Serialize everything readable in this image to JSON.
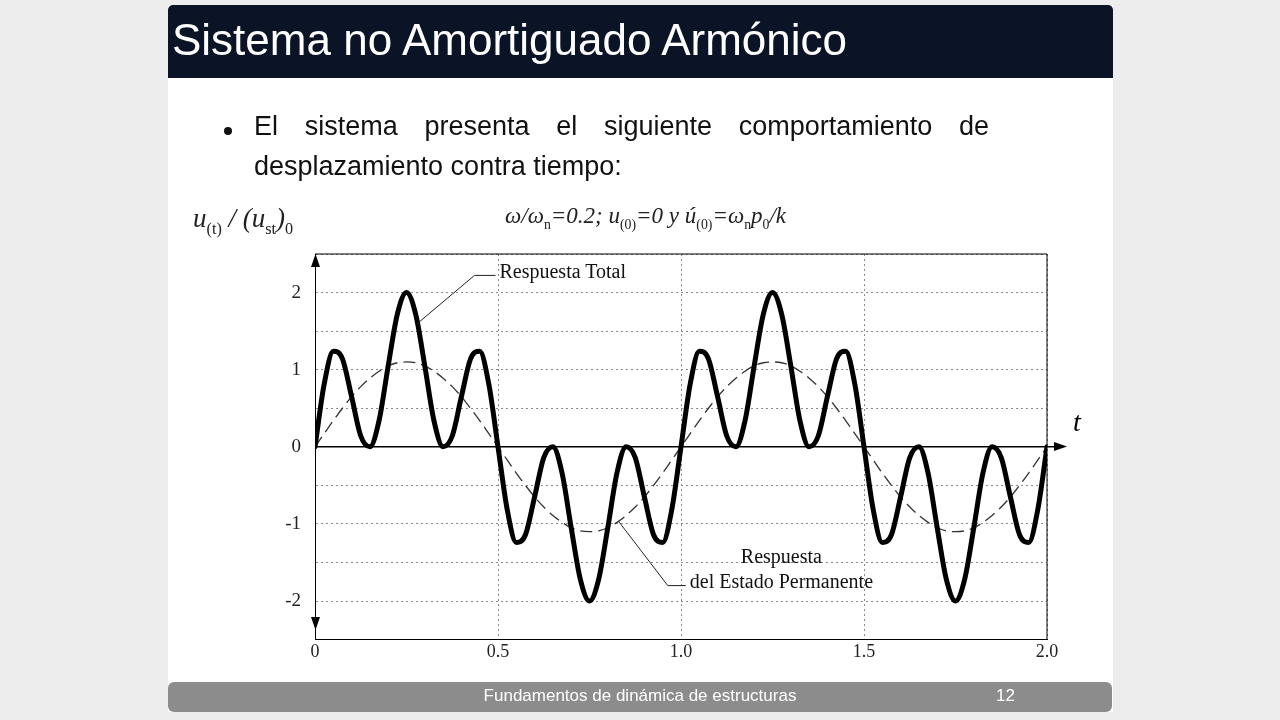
{
  "chart_data": {
    "type": "line",
    "title": "Sistema no Amortiguado Armónico",
    "subtitle": "El sistema presenta el siguiente comportamiento de desplazamiento contra tiempo:",
    "xlabel": "t",
    "ylabel": "u$_{(t)}$ / (u$_{st}$)$_{0}$",
    "x": [
      0,
      0.025,
      0.05,
      0.075,
      0.1,
      0.125,
      0.15,
      0.175,
      0.2,
      0.225,
      0.25,
      0.275,
      0.3,
      0.325,
      0.35,
      0.375,
      0.4,
      0.425,
      0.45,
      0.475,
      0.5,
      0.525,
      0.55,
      0.575,
      0.6,
      0.625,
      0.65,
      0.675,
      0.7,
      0.725,
      0.75,
      0.775,
      0.8,
      0.825,
      0.85,
      0.875,
      0.9,
      0.925,
      0.95,
      0.975,
      1,
      1.025,
      1.05,
      1.075,
      1.1,
      1.125,
      1.15,
      1.175,
      1.2,
      1.225,
      1.25,
      1.275,
      1.3,
      1.325,
      1.35,
      1.375,
      1.4,
      1.425,
      1.45,
      1.475,
      1.5,
      1.525,
      1.55,
      1.575,
      1.6,
      1.625,
      1.65,
      1.675,
      1.7,
      1.725,
      1.75,
      1.775,
      1.8,
      1.825,
      1.85,
      1.875,
      1.9,
      1.925,
      1.95,
      1.975,
      2
    ],
    "series": [
      {
        "color": "#000000",
        "values": [
          0,
          0.81,
          1.24,
          1.14,
          0.65,
          0.14,
          0,
          0.34,
          1.05,
          1.72,
          2,
          1.72,
          1.05,
          0.34,
          0,
          0.14,
          0.65,
          1.14,
          1.24,
          0.81,
          0,
          -0.81,
          -1.24,
          -1.14,
          -0.65,
          -0.14,
          0,
          -0.34,
          -1.05,
          -1.72,
          -2,
          -1.72,
          -1.05,
          -0.34,
          0,
          -0.14,
          -0.65,
          -1.14,
          -1.24,
          -0.81,
          0,
          0.81,
          1.24,
          1.14,
          0.65,
          0.14,
          0,
          0.34,
          1.05,
          1.72,
          2,
          1.72,
          1.05,
          0.34,
          0,
          0.14,
          0.65,
          1.14,
          1.24,
          0.81,
          0,
          -0.81,
          -1.24,
          -1.14,
          -0.65,
          -0.14,
          0,
          -0.34,
          -1.05,
          -1.72,
          -2,
          -1.72,
          -1.05,
          -0.34,
          0,
          -0.14,
          -0.65,
          -1.14,
          -1.24,
          -0.81,
          0
        ]
      },
      {
        "color": "#333333",
        "line_style": "dashed",
        "values": [
          0,
          0.17,
          0.34,
          0.5,
          0.65,
          0.78,
          0.89,
          0.98,
          1.05,
          1.09,
          1.1,
          1.09,
          1.05,
          0.98,
          0.89,
          0.78,
          0.65,
          0.5,
          0.34,
          0.17,
          0,
          -0.17,
          -0.34,
          -0.5,
          -0.65,
          -0.78,
          -0.89,
          -0.98,
          -1.05,
          -1.09,
          -1.1,
          -1.09,
          -1.05,
          -0.98,
          -0.89,
          -0.78,
          -0.65,
          -0.5,
          -0.34,
          -0.17,
          0,
          0.17,
          0.34,
          0.5,
          0.65,
          0.78,
          0.89,
          0.98,
          1.05,
          1.09,
          1.1,
          1.09,
          1.05,
          0.98,
          0.89,
          0.78,
          0.65,
          0.5,
          0.34,
          0.17,
          0,
          -0.17,
          -0.34,
          -0.5,
          -0.65,
          -0.78,
          -0.89,
          -0.98,
          -1.05,
          -1.09,
          -1.1,
          -1.09,
          -1.05,
          -0.98,
          -0.89,
          -0.78,
          -0.65,
          -0.5,
          -0.34,
          -0.17,
          0
        ]
      }
    ],
    "xlim": [
      0,
      2
    ],
    "xticks": [
      0,
      0.5,
      {
        "value": 1,
        "label": "1.0"
      },
      1.5,
      {
        "value": 2,
        "label": "2.0"
      }
    ],
    "ylim": [
      -2.5,
      2.5
    ],
    "yticks": [
      {
        "value": -2.5,
        "label": null
      },
      -2,
      {
        "value": -1.5,
        "label": null
      },
      -1,
      {
        "value": -0.5,
        "label": null
      },
      0,
      {
        "value": 0.5,
        "label": null
      },
      1,
      {
        "value": 1.5,
        "label": null
      },
      2,
      {
        "value": 2.5,
        "label": null
      }
    ],
    "grid": true,
    "line_style": "solid",
    "annotations": [
      "ω/ω$_{n}$=0.2; u$_{(0)}$=0 y ú$_{(0)}$=ω$_{n}$p$_{0}$/k",
      "Fundamentos de dinámica de estructuras",
      "12",
      {
        "text": "Respuesta Total",
        "x": 0.28,
        "y": 1.6
      },
      {
        "text": "Respuesta del Estado Permanente",
        "x": 0.83,
        "y": -0.97
      }
    ]
  }
}
